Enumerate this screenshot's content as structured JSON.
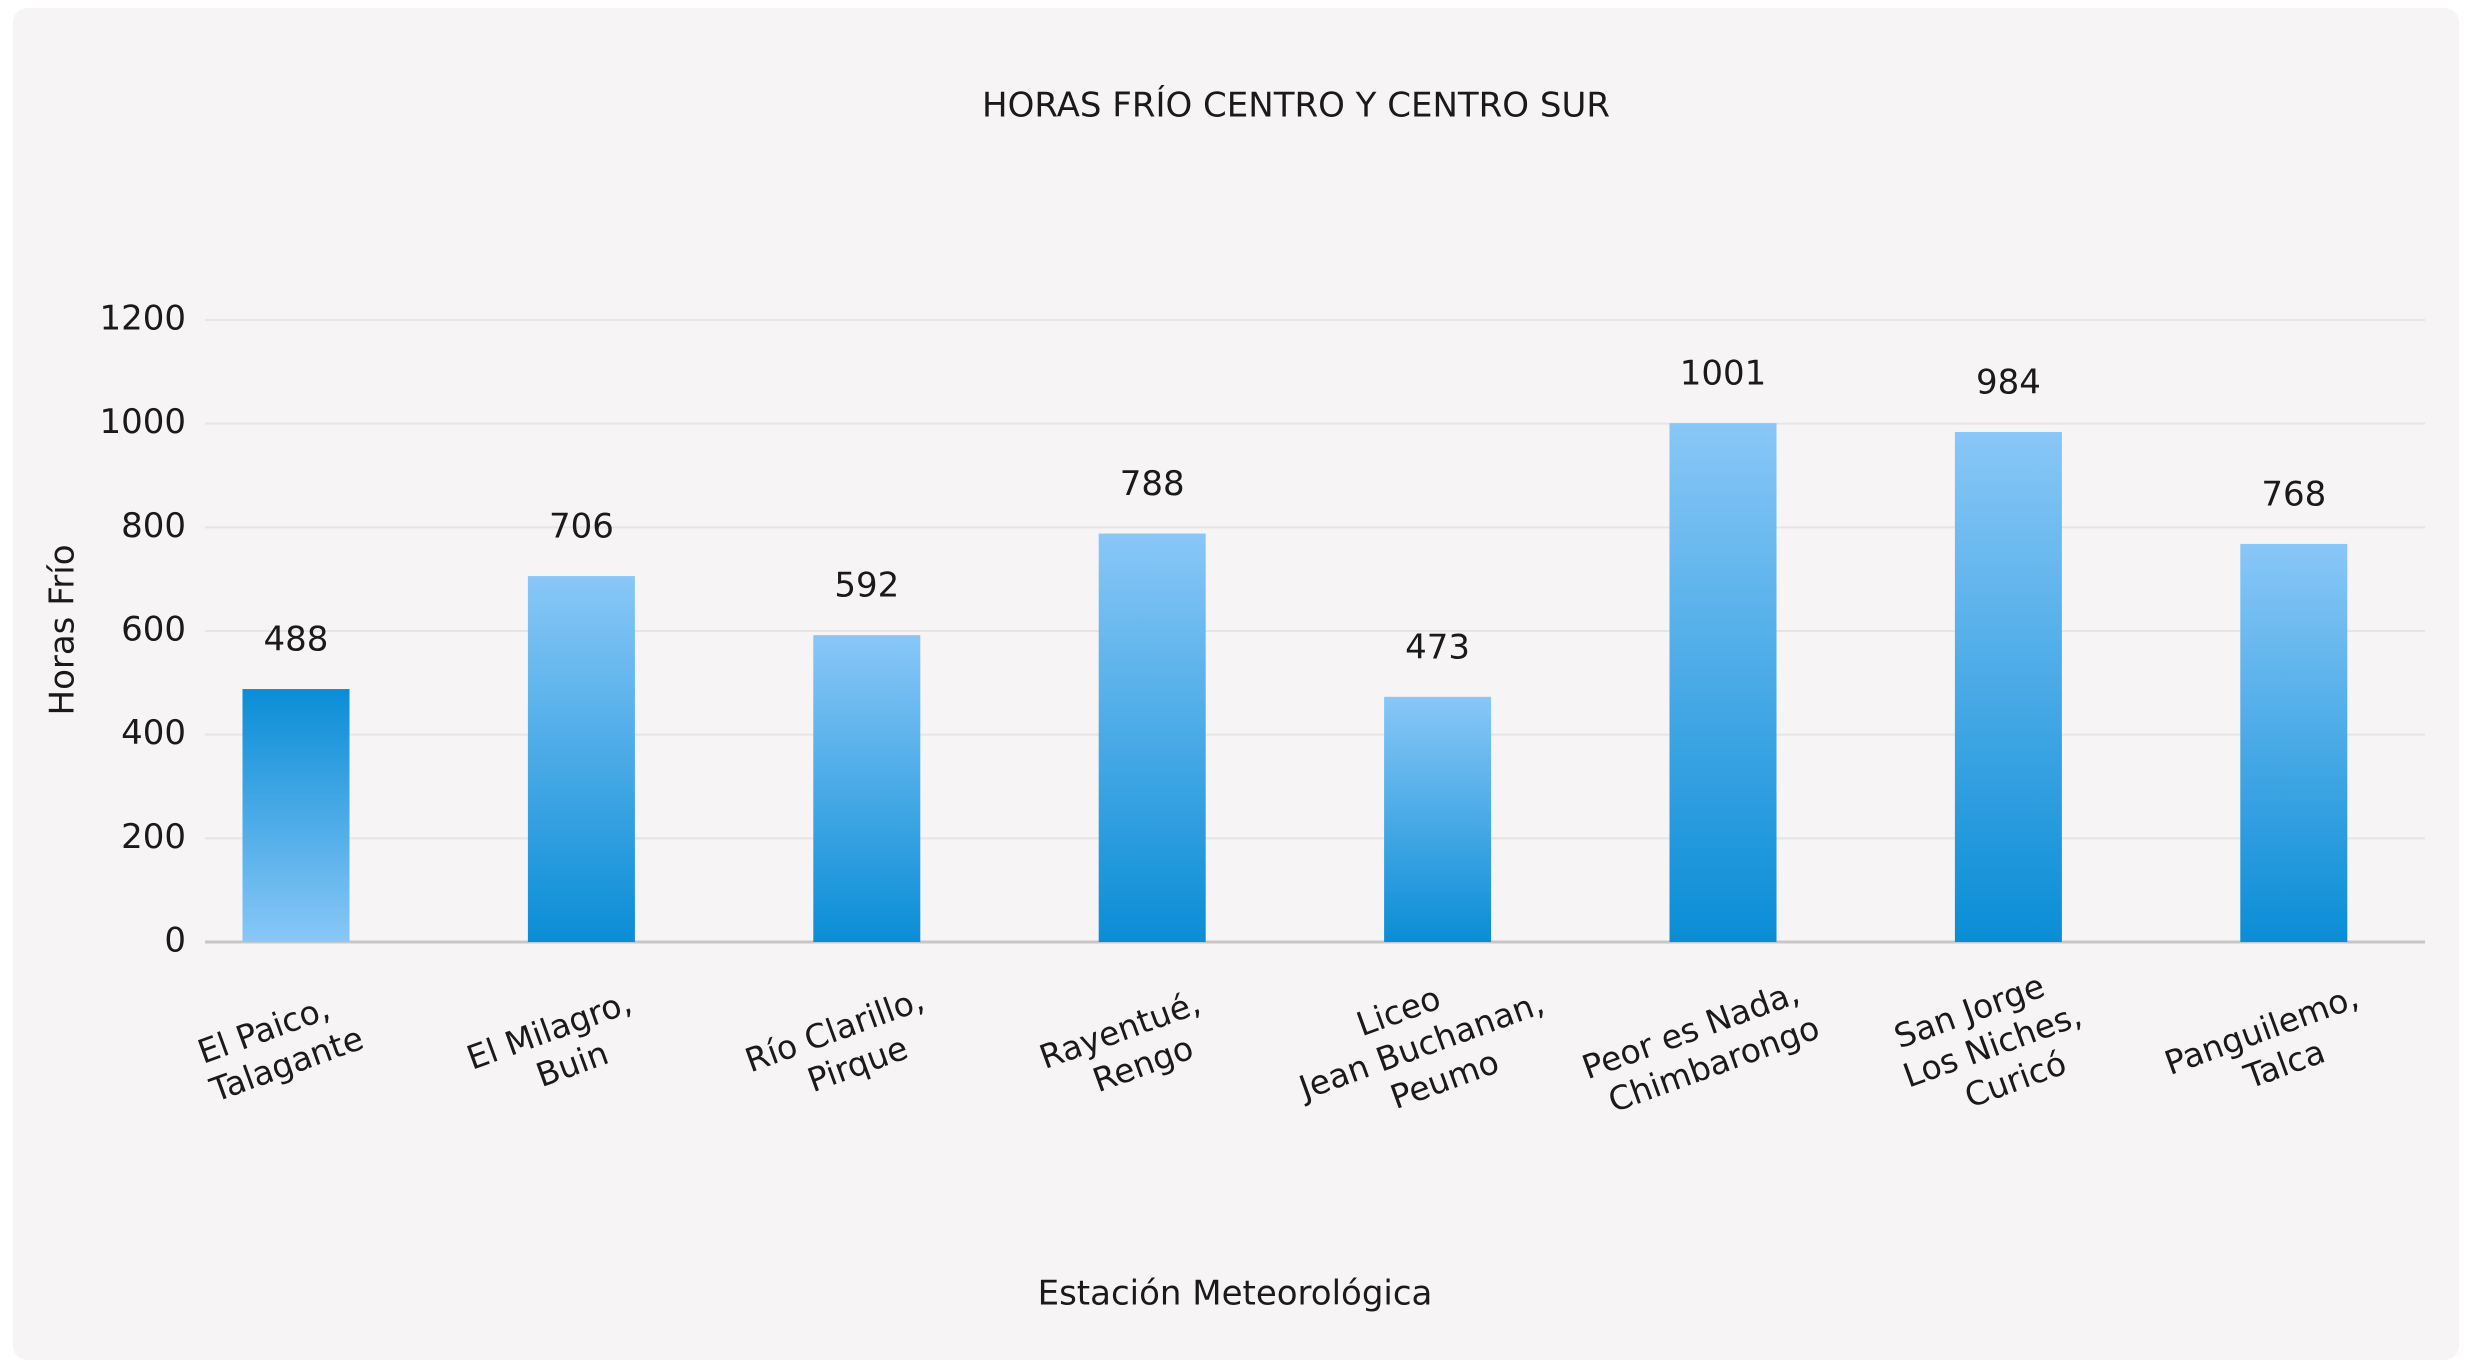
{
  "chart_data": {
    "type": "bar",
    "title": "HORAS FRÍO CENTRO Y CENTRO SUR",
    "x_label": "Estación Meteorológica",
    "y_label": "Horas Frío",
    "categories": [
      [
        "El Paico,",
        "Talagante"
      ],
      [
        "El Milagro,",
        "Buin"
      ],
      [
        "Río Clarillo,",
        "Pirque"
      ],
      [
        "Rayentué,",
        "Rengo"
      ],
      [
        "Liceo",
        "Jean Buchanan,",
        "Peumo"
      ],
      [
        "Peor es Nada,",
        "Chimbarongo"
      ],
      [
        "San Jorge",
        "Los Niches,",
        "Curicó"
      ],
      [
        "Panguilemo,",
        "Talca"
      ]
    ],
    "values": [
      488,
      706,
      592,
      788,
      473,
      1001,
      984,
      768
    ],
    "gradient": {
      "light": "#89c7f7",
      "dark": "#0a8dd6"
    },
    "dark_on_top": [
      true,
      false,
      false,
      false,
      false,
      false,
      false,
      false
    ],
    "ylim": [
      0,
      1200
    ],
    "yticks": [
      0,
      200,
      400,
      600,
      800,
      1000,
      1200
    ],
    "grid": true
  }
}
